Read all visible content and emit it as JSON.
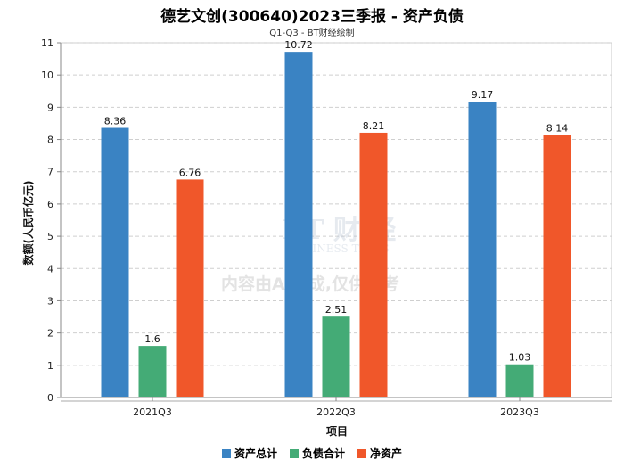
{
  "chart_data": {
    "type": "bar",
    "title": "德艺文创(300640)2023三季报 - 资产负债",
    "subtitle": "Q1-Q3 - BT财经绘制",
    "xlabel": "项目",
    "ylabel": "数额(人民币亿元)",
    "categories": [
      "2021Q3",
      "2022Q3",
      "2023Q3"
    ],
    "ylim": [
      0,
      11
    ],
    "yticks": [
      0,
      1,
      2,
      3,
      4,
      5,
      6,
      7,
      8,
      9,
      10,
      11
    ],
    "grid": true,
    "legend_position": "bottom",
    "series": [
      {
        "name": "资产总计",
        "color": "#3a83c3",
        "values": [
          8.36,
          10.72,
          9.17
        ]
      },
      {
        "name": "负债合计",
        "color": "#44ab76",
        "values": [
          1.6,
          2.51,
          1.03
        ]
      },
      {
        "name": "净资产",
        "color": "#f0572a",
        "values": [
          6.76,
          8.21,
          8.14
        ]
      }
    ],
    "watermark": {
      "line1": "BT 财 经",
      "line2": "BUSINESS TIMES",
      "line3": "内容由AI生成,仅供参考"
    }
  }
}
